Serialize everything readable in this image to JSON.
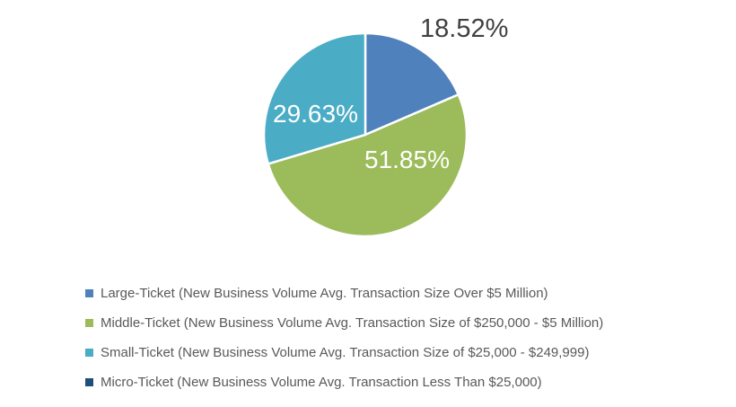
{
  "chart_data": {
    "type": "pie",
    "title": "",
    "unit": "%",
    "direction": "clockwise",
    "start_angle": "12-o'clock",
    "legend_position": "bottom-left",
    "colors": {
      "background": "#FFFFFF",
      "outside_label": "#404040",
      "inside_label": "#FFFFFF",
      "legend_text": "#595959",
      "slice_border": "#FFFFFF"
    },
    "slices": [
      {
        "name": "Large-Ticket (New Business Volume Avg. Transaction Size Over $5 Million)",
        "value": 18.52,
        "label": "18.52%",
        "color": "#4F81BD"
      },
      {
        "name": "Middle-Ticket (New Business Volume Avg. Transaction Size of $250,000 - $5 Million)",
        "value": 51.85,
        "label": "51.85%",
        "color": "#9CBB5B"
      },
      {
        "name": "Small-Ticket (New Business Volume Avg. Transaction Size of $25,000 - $249,999)",
        "value": 29.63,
        "label": "29.63%",
        "color": "#4BACC6"
      },
      {
        "name": "Micro-Ticket (New Business Volume Avg. Transaction Less Than $25,000)",
        "value": 0,
        "label": "",
        "color": "#1F4E79"
      }
    ]
  }
}
